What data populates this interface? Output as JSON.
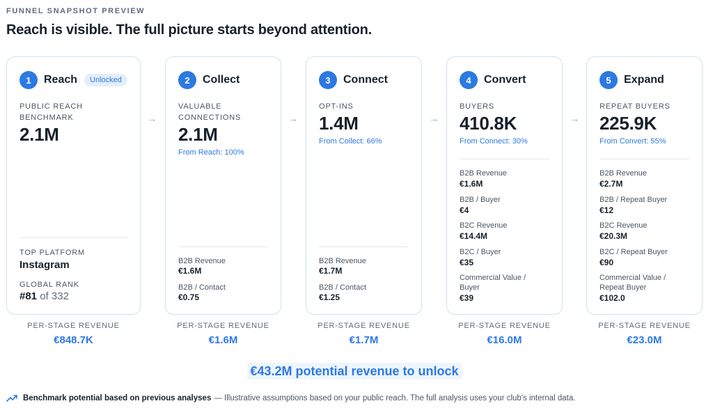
{
  "header": {
    "eyebrow": "FUNNEL SNAPSHOT PREVIEW",
    "headline": "Reach is visible. The full picture starts beyond attention."
  },
  "stages": [
    {
      "num": "1",
      "title": "Reach",
      "badge": "Unlocked",
      "metric_label": "PUBLIC REACH BENCHMARK",
      "metric_value": "2.1M",
      "top_platform_label": "TOP PLATFORM",
      "top_platform_value": "Instagram",
      "rank_label": "GLOBAL RANK",
      "rank_value": "#81",
      "rank_suffix": "of 332",
      "revenue_label": "PER-STAGE REVENUE",
      "revenue_value": "€848.7K"
    },
    {
      "num": "2",
      "title": "Collect",
      "metric_label": "VALUABLE CONNECTIONS",
      "metric_value": "2.1M",
      "from_note": "From Reach: 100%",
      "kv": [
        {
          "label": "B2B Revenue",
          "value": "€1.6M"
        },
        {
          "label": "B2B / Contact",
          "value": "€0.75"
        }
      ],
      "revenue_label": "PER-STAGE REVENUE",
      "revenue_value": "€1.6M"
    },
    {
      "num": "3",
      "title": "Connect",
      "metric_label": "OPT-INS",
      "metric_value": "1.4M",
      "from_note": "From Collect: 66%",
      "kv": [
        {
          "label": "B2B Revenue",
          "value": "€1.7M"
        },
        {
          "label": "B2B / Contact",
          "value": "€1.25"
        }
      ],
      "revenue_label": "PER-STAGE REVENUE",
      "revenue_value": "€1.7M"
    },
    {
      "num": "4",
      "title": "Convert",
      "metric_label": "BUYERS",
      "metric_value": "410.8K",
      "from_note": "From Connect: 30%",
      "kv": [
        {
          "label": "B2B Revenue",
          "value": "€1.6M"
        },
        {
          "label": "B2B / Buyer",
          "value": "€4"
        },
        {
          "label": "B2C Revenue",
          "value": "€14.4M"
        },
        {
          "label": "B2C / Buyer",
          "value": "€35"
        },
        {
          "label": "Commercial Value / Buyer",
          "value": "€39"
        }
      ],
      "revenue_label": "PER-STAGE REVENUE",
      "revenue_value": "€16.0M"
    },
    {
      "num": "5",
      "title": "Expand",
      "metric_label": "REPEAT BUYERS",
      "metric_value": "225.9K",
      "from_note": "From Convert: 55%",
      "kv": [
        {
          "label": "B2B Revenue",
          "value": "€2.7M"
        },
        {
          "label": "B2B / Repeat Buyer",
          "value": "€12"
        },
        {
          "label": "B2C Revenue",
          "value": "€20.3M"
        },
        {
          "label": "B2C / Repeat Buyer",
          "value": "€90"
        },
        {
          "label": "Commercial Value / Repeat Buyer",
          "value": "€102.0"
        }
      ],
      "revenue_label": "PER-STAGE REVENUE",
      "revenue_value": "€23.0M"
    }
  ],
  "arrow_glyph": "→",
  "total": "€43.2M potential revenue to unlock",
  "footer": {
    "icon": "trending-up-icon",
    "bold": "Benchmark potential based on previous analyses",
    "text": "— Illustrative assumptions based on your public reach. The full analysis uses your club's internal data."
  },
  "colors": {
    "accent": "#2c79e2",
    "card_border": "#cfe0f2",
    "badge_bg": "#e3eefb"
  }
}
